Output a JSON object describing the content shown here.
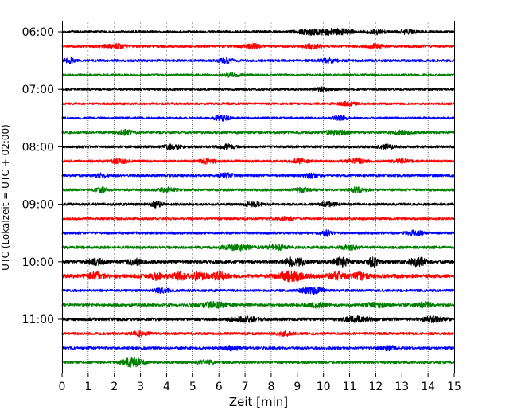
{
  "chart_data": {
    "type": "line",
    "title": "",
    "xlabel": "Zeit  [min]",
    "ylabel": "UTC (Lokalzeit = UTC + 02:00)",
    "xlim": [
      0,
      15
    ],
    "x_ticks": [
      "0",
      "1",
      "2",
      "3",
      "4",
      "5",
      "6",
      "7",
      "8",
      "9",
      "10",
      "11",
      "12",
      "13",
      "14",
      "15"
    ],
    "y_ticks": [
      "06:00",
      "07:00",
      "08:00",
      "09:00",
      "10:00",
      "11:00"
    ],
    "y_tick_rows": [
      0,
      4,
      8,
      12,
      16,
      20
    ],
    "grid": "vertical dotted lines at each minute",
    "trace_interval_minutes": 15,
    "trace_count": 24,
    "trace_start": "06:00",
    "colors": [
      "#000000",
      "#ff0000",
      "#0000ff",
      "#008000"
    ],
    "traces": [
      {
        "start": "06:00",
        "color_index": 0,
        "noise": 1.0,
        "bursts": [
          [
            9.5,
            1.6,
            0.5
          ],
          [
            10.5,
            2.0,
            0.6
          ],
          [
            12.0,
            1.6,
            0.3
          ],
          [
            13.2,
            1.4,
            0.3
          ]
        ]
      },
      {
        "start": "06:15",
        "color_index": 1,
        "noise": 1.0,
        "bursts": [
          [
            2.0,
            1.2,
            0.4
          ],
          [
            7.3,
            1.8,
            0.3
          ],
          [
            9.6,
            1.8,
            0.3
          ],
          [
            12.0,
            1.3,
            0.3
          ]
        ]
      },
      {
        "start": "06:30",
        "color_index": 2,
        "noise": 1.0,
        "bursts": [
          [
            0.3,
            1.6,
            0.2
          ],
          [
            6.3,
            1.4,
            0.3
          ],
          [
            10.2,
            1.3,
            0.3
          ]
        ]
      },
      {
        "start": "06:45",
        "color_index": 3,
        "noise": 0.9,
        "bursts": [
          [
            6.5,
            1.2,
            0.3
          ]
        ]
      },
      {
        "start": "07:00",
        "color_index": 0,
        "noise": 0.9,
        "bursts": [
          [
            9.9,
            1.3,
            0.3
          ]
        ]
      },
      {
        "start": "07:15",
        "color_index": 1,
        "noise": 0.9,
        "bursts": [
          [
            10.9,
            1.2,
            0.3
          ]
        ]
      },
      {
        "start": "07:30",
        "color_index": 2,
        "noise": 0.9,
        "bursts": [
          [
            6.1,
            1.6,
            0.3
          ],
          [
            10.6,
            1.3,
            0.3
          ]
        ]
      },
      {
        "start": "07:45",
        "color_index": 3,
        "noise": 1.0,
        "bursts": [
          [
            2.4,
            1.6,
            0.3
          ],
          [
            10.5,
            1.8,
            0.4
          ],
          [
            13.0,
            1.4,
            0.3
          ]
        ]
      },
      {
        "start": "08:00",
        "color_index": 0,
        "noise": 1.0,
        "bursts": [
          [
            4.2,
            1.6,
            0.3
          ],
          [
            6.3,
            1.4,
            0.3
          ],
          [
            12.4,
            1.4,
            0.3
          ]
        ]
      },
      {
        "start": "08:15",
        "color_index": 1,
        "noise": 1.0,
        "bursts": [
          [
            2.2,
            1.5,
            0.3
          ],
          [
            5.6,
            1.6,
            0.3
          ],
          [
            9.1,
            1.4,
            0.3
          ],
          [
            11.3,
            1.8,
            0.3
          ],
          [
            13.0,
            1.4,
            0.3
          ]
        ]
      },
      {
        "start": "08:30",
        "color_index": 2,
        "noise": 1.0,
        "bursts": [
          [
            1.5,
            1.4,
            0.3
          ],
          [
            6.3,
            1.4,
            0.3
          ],
          [
            9.5,
            1.4,
            0.3
          ]
        ]
      },
      {
        "start": "08:45",
        "color_index": 3,
        "noise": 1.0,
        "bursts": [
          [
            1.5,
            1.8,
            0.2
          ],
          [
            4.0,
            1.4,
            0.3
          ],
          [
            9.2,
            1.4,
            0.3
          ],
          [
            11.3,
            1.6,
            0.3
          ]
        ]
      },
      {
        "start": "09:00",
        "color_index": 0,
        "noise": 1.0,
        "bursts": [
          [
            3.6,
            2.0,
            0.2
          ],
          [
            7.3,
            1.5,
            0.3
          ],
          [
            10.2,
            1.4,
            0.3
          ]
        ]
      },
      {
        "start": "09:15",
        "color_index": 1,
        "noise": 0.9,
        "bursts": [
          [
            8.6,
            1.3,
            0.3
          ]
        ]
      },
      {
        "start": "09:30",
        "color_index": 2,
        "noise": 1.0,
        "bursts": [
          [
            10.1,
            2.0,
            0.2
          ],
          [
            13.5,
            1.5,
            0.3
          ]
        ]
      },
      {
        "start": "09:45",
        "color_index": 3,
        "noise": 1.1,
        "bursts": [
          [
            6.7,
            1.8,
            0.5
          ],
          [
            8.2,
            1.6,
            0.4
          ],
          [
            11.0,
            1.4,
            0.3
          ]
        ]
      },
      {
        "start": "10:00",
        "color_index": 0,
        "noise": 1.3,
        "bursts": [
          [
            1.3,
            1.8,
            0.4
          ],
          [
            2.8,
            1.8,
            0.3
          ],
          [
            8.7,
            2.8,
            0.2
          ],
          [
            9.1,
            2.4,
            0.2
          ],
          [
            10.7,
            2.8,
            0.3
          ],
          [
            11.9,
            3.2,
            0.2
          ],
          [
            13.6,
            3.0,
            0.3
          ]
        ]
      },
      {
        "start": "10:15",
        "color_index": 1,
        "noise": 1.5,
        "bursts": [
          [
            1.3,
            2.2,
            0.3
          ],
          [
            3.6,
            2.4,
            0.2
          ],
          [
            4.5,
            2.2,
            0.3
          ],
          [
            5.2,
            2.4,
            0.3
          ],
          [
            6.0,
            2.2,
            0.3
          ],
          [
            8.8,
            3.2,
            0.5
          ],
          [
            10.5,
            2.2,
            0.3
          ],
          [
            11.4,
            2.0,
            0.3
          ]
        ]
      },
      {
        "start": "10:30",
        "color_index": 2,
        "noise": 1.0,
        "bursts": [
          [
            3.8,
            1.4,
            0.3
          ],
          [
            9.4,
            1.8,
            0.3
          ],
          [
            9.8,
            1.8,
            0.2
          ]
        ]
      },
      {
        "start": "10:45",
        "color_index": 3,
        "noise": 1.1,
        "bursts": [
          [
            5.8,
            1.8,
            0.6
          ],
          [
            9.7,
            1.6,
            0.4
          ],
          [
            12.0,
            1.6,
            0.4
          ],
          [
            13.9,
            1.8,
            0.3
          ]
        ]
      },
      {
        "start": "11:00",
        "color_index": 0,
        "noise": 1.2,
        "bursts": [
          [
            7.0,
            1.6,
            0.5
          ],
          [
            11.3,
            1.6,
            0.5
          ],
          [
            14.2,
            1.6,
            0.4
          ]
        ]
      },
      {
        "start": "11:15",
        "color_index": 1,
        "noise": 1.0,
        "bursts": [
          [
            3.0,
            1.6,
            0.3
          ],
          [
            8.5,
            1.4,
            0.3
          ]
        ]
      },
      {
        "start": "11:30",
        "color_index": 2,
        "noise": 1.0,
        "bursts": [
          [
            6.5,
            1.4,
            0.3
          ],
          [
            12.5,
            1.4,
            0.3
          ]
        ]
      },
      {
        "start": "11:45",
        "color_index": 3,
        "noise": 1.0,
        "bursts": [
          [
            2.7,
            3.0,
            0.4
          ],
          [
            5.5,
            1.4,
            0.3
          ]
        ]
      }
    ]
  }
}
